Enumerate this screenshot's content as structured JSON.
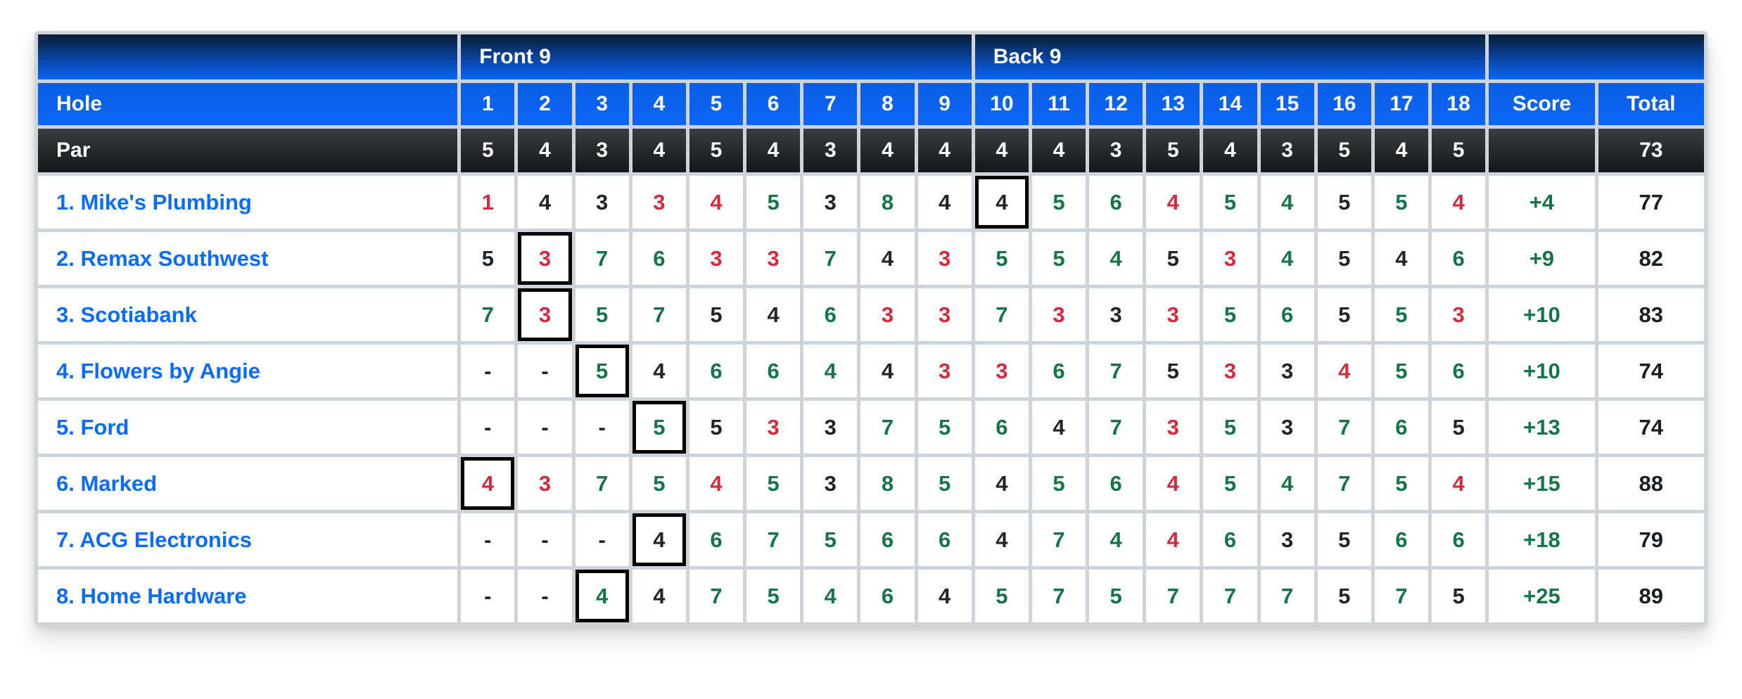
{
  "header": {
    "front_label": "Front 9",
    "back_label": "Back 9",
    "hole_label": "Hole",
    "par_label": "Par",
    "score_label": "Score",
    "total_label": "Total"
  },
  "holes": {
    "numbers": [
      1,
      2,
      3,
      4,
      5,
      6,
      7,
      8,
      9,
      10,
      11,
      12,
      13,
      14,
      15,
      16,
      17,
      18
    ],
    "par": [
      5,
      4,
      3,
      4,
      5,
      4,
      3,
      4,
      4,
      4,
      4,
      3,
      5,
      4,
      3,
      5,
      4,
      5
    ],
    "par_total": "73"
  },
  "teams": [
    {
      "name": "1. Mike's Plumbing",
      "scores": [
        "1",
        "4",
        "3",
        "3",
        "4",
        "5",
        "3",
        "8",
        "4",
        "4",
        "5",
        "6",
        "4",
        "5",
        "4",
        "5",
        "5",
        "4"
      ],
      "boxed_hole": 10,
      "score": "+4",
      "total": "77"
    },
    {
      "name": "2. Remax Southwest",
      "scores": [
        "5",
        "3",
        "7",
        "6",
        "3",
        "3",
        "7",
        "4",
        "3",
        "5",
        "5",
        "4",
        "5",
        "3",
        "4",
        "5",
        "4",
        "6"
      ],
      "boxed_hole": 2,
      "score": "+9",
      "total": "82"
    },
    {
      "name": "3. Scotiabank",
      "scores": [
        "7",
        "3",
        "5",
        "7",
        "5",
        "4",
        "6",
        "3",
        "3",
        "7",
        "3",
        "3",
        "3",
        "5",
        "6",
        "5",
        "5",
        "3"
      ],
      "boxed_hole": 2,
      "score": "+10",
      "total": "83"
    },
    {
      "name": "4. Flowers by Angie",
      "scores": [
        "-",
        "-",
        "5",
        "4",
        "6",
        "6",
        "4",
        "4",
        "3",
        "3",
        "6",
        "7",
        "5",
        "3",
        "3",
        "4",
        "5",
        "6"
      ],
      "boxed_hole": 3,
      "score": "+10",
      "total": "74"
    },
    {
      "name": "5. Ford",
      "scores": [
        "-",
        "-",
        "-",
        "5",
        "5",
        "3",
        "3",
        "7",
        "5",
        "6",
        "4",
        "7",
        "3",
        "5",
        "3",
        "7",
        "6",
        "5"
      ],
      "boxed_hole": 4,
      "score": "+13",
      "total": "74"
    },
    {
      "name": "6. Marked",
      "scores": [
        "4",
        "3",
        "7",
        "5",
        "4",
        "5",
        "3",
        "8",
        "5",
        "4",
        "5",
        "6",
        "4",
        "5",
        "4",
        "7",
        "5",
        "4"
      ],
      "boxed_hole": 1,
      "score": "+15",
      "total": "88"
    },
    {
      "name": "7. ACG Electronics",
      "scores": [
        "-",
        "-",
        "-",
        "4",
        "6",
        "7",
        "5",
        "6",
        "6",
        "4",
        "7",
        "4",
        "4",
        "6",
        "3",
        "5",
        "6",
        "6"
      ],
      "boxed_hole": 4,
      "score": "+18",
      "total": "79"
    },
    {
      "name": "8. Home Hardware",
      "scores": [
        "-",
        "-",
        "4",
        "4",
        "7",
        "5",
        "4",
        "6",
        "4",
        "5",
        "7",
        "5",
        "7",
        "7",
        "7",
        "5",
        "7",
        "5"
      ],
      "boxed_hole": 3,
      "score": "+25",
      "total": "89"
    }
  ],
  "colors": {
    "header_blue": "#0b63f0",
    "header_blue_dark_top": "#0a1c33",
    "par_row_dark": "#26282b",
    "grid_gray": "#cfd4da",
    "team_link_blue": "#0b6bfb",
    "under_par_red": "#d5293d",
    "over_par_green": "#15744a",
    "even_par_black": "#212529"
  }
}
